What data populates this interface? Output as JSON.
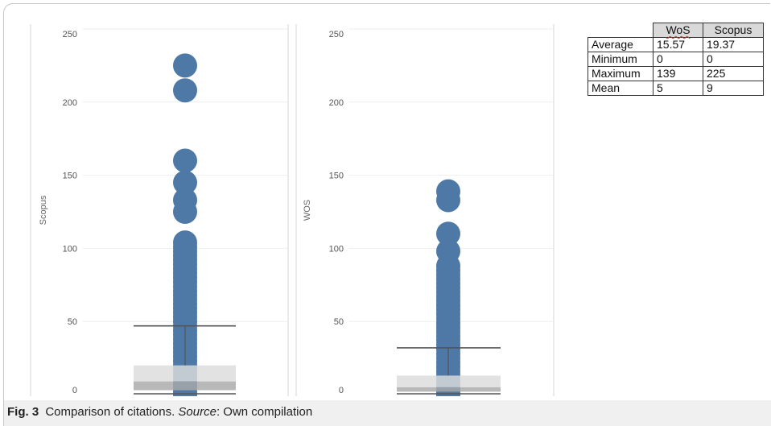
{
  "chart_data": [
    {
      "type": "scatter",
      "ylabel": "Scopus",
      "ylim": [
        0,
        250
      ],
      "yticks": [
        0,
        50,
        100,
        150,
        200,
        250
      ],
      "grid": true,
      "values": [
        225,
        208,
        160,
        145,
        133,
        125,
        104,
        101,
        98,
        95,
        92,
        89,
        86,
        83,
        80,
        77,
        74,
        71,
        68,
        65,
        62,
        59,
        56,
        53,
        50,
        47,
        44,
        41,
        38,
        35,
        32,
        29,
        26,
        23,
        20,
        17,
        14,
        11,
        8,
        5,
        2,
        0
      ],
      "box": {
        "whisker_high": 47,
        "q3": 20,
        "median": 9,
        "q1": 3,
        "whisker_low": 0
      }
    },
    {
      "type": "scatter",
      "ylabel": "WOS",
      "ylim": [
        0,
        250
      ],
      "yticks": [
        0,
        50,
        100,
        150,
        200,
        250
      ],
      "grid": true,
      "values": [
        139,
        133,
        110,
        98,
        88,
        85,
        82,
        79,
        76,
        73,
        70,
        67,
        64,
        61,
        58,
        55,
        52,
        49,
        46,
        43,
        40,
        37,
        34,
        31,
        28,
        25,
        22,
        19,
        16,
        13,
        10,
        7,
        4,
        1,
        0
      ],
      "box": {
        "whisker_high": 32,
        "q3": 13,
        "median": 5,
        "q1": 2,
        "whisker_low": 0
      }
    },
    {
      "type": "table",
      "columns": [
        "",
        "WoS",
        "Scopus"
      ],
      "rows": [
        [
          "Average",
          "15.57",
          "19.37"
        ],
        [
          "Minimum",
          "0",
          "0"
        ],
        [
          "Maximum",
          "139",
          "225"
        ],
        [
          "Mean",
          "5",
          "9"
        ]
      ]
    }
  ],
  "caption": {
    "label": "Fig. 3",
    "text": "Comparison of citations.",
    "source_label": "Source",
    "source_text": ": Own compilation"
  },
  "colors": {
    "points": "#4e79a7",
    "box_upper": "#dcdcdc",
    "box_lower": "#a8a8a8",
    "whisker": "#555555",
    "gridline": "#eeeeee",
    "panel_border": "#d6d6d6",
    "tick_text": "#555555"
  }
}
